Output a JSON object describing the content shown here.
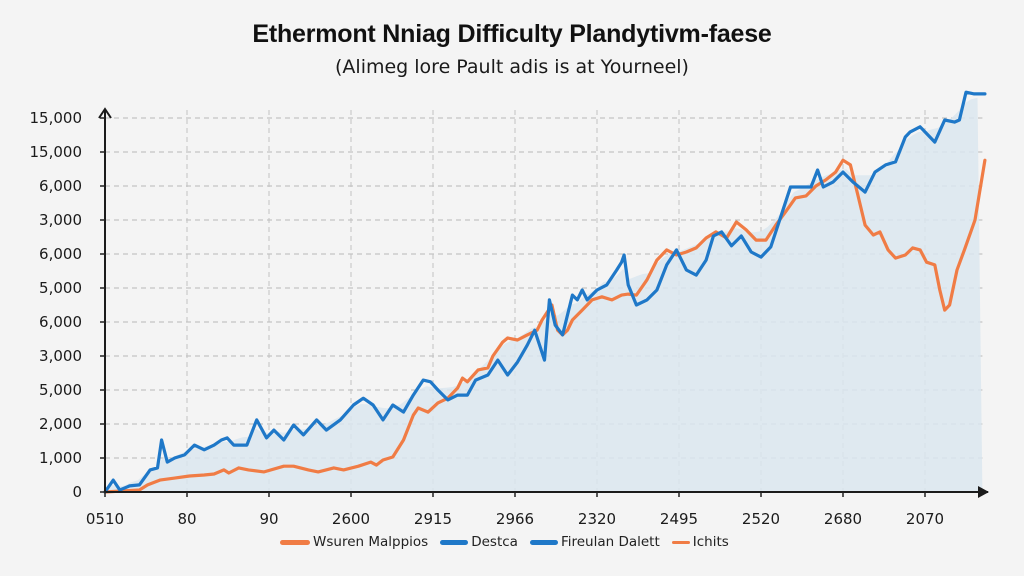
{
  "chart_data": {
    "type": "line",
    "title": "Ethermont Nniag Difficulty Plandytivm-faese",
    "subtitle": "(Alimeg lore Pault adis is at Yourneel)",
    "xlabel": "",
    "ylabel": "",
    "grid": true,
    "legend_position": "bottom-center",
    "x_tick_labels": [
      "0510",
      "80",
      "90",
      "2600",
      "2915",
      "2966",
      "2320",
      "2495",
      "2520",
      "2680",
      "2070"
    ],
    "y_tick_labels": [
      "0",
      "1,000",
      "2,000",
      "5,000",
      "3,000",
      "6,000",
      "5,000",
      "6,000",
      "3,000",
      "6,000",
      "15,000",
      "15,000"
    ],
    "y_note": "Tick labels are non-monotonic as printed; values below are in gridline-index units (0 = bottom tick '0', 11 = top tick '15,000'), x in tick-index units (0 = '0510', 10 = '2070').",
    "x_range": [
      0,
      10.7
    ],
    "y_range": [
      0,
      11.5
    ],
    "series": [
      {
        "name": "Wsuren Malppios",
        "color": "#f07c45",
        "points": [
          [
            0,
            0
          ],
          [
            0.42,
            0.06
          ],
          [
            0.52,
            0.21
          ],
          [
            0.67,
            0.35
          ],
          [
            0.85,
            0.41
          ],
          [
            1.03,
            0.47
          ],
          [
            1.21,
            0.5
          ],
          [
            1.33,
            0.53
          ],
          [
            1.45,
            0.65
          ],
          [
            1.51,
            0.56
          ],
          [
            1.63,
            0.71
          ],
          [
            1.75,
            0.65
          ],
          [
            1.94,
            0.59
          ],
          [
            2.18,
            0.76
          ],
          [
            2.3,
            0.76
          ],
          [
            2.48,
            0.65
          ],
          [
            2.6,
            0.59
          ],
          [
            2.79,
            0.71
          ],
          [
            2.91,
            0.65
          ],
          [
            3.09,
            0.76
          ],
          [
            3.24,
            0.88
          ],
          [
            3.31,
            0.79
          ],
          [
            3.39,
            0.94
          ],
          [
            3.51,
            1.03
          ],
          [
            3.64,
            1.53
          ],
          [
            3.76,
            2.26
          ],
          [
            3.82,
            2.47
          ],
          [
            3.94,
            2.35
          ],
          [
            4.06,
            2.62
          ],
          [
            4.18,
            2.76
          ],
          [
            4.3,
            3.06
          ],
          [
            4.36,
            3.35
          ],
          [
            4.42,
            3.24
          ],
          [
            4.55,
            3.59
          ],
          [
            4.67,
            3.65
          ],
          [
            4.73,
            4.0
          ],
          [
            4.85,
            4.41
          ],
          [
            4.91,
            4.53
          ],
          [
            5.03,
            4.47
          ],
          [
            5.15,
            4.62
          ],
          [
            5.27,
            4.76
          ],
          [
            5.33,
            5.06
          ],
          [
            5.45,
            5.5
          ],
          [
            5.52,
            4.76
          ],
          [
            5.58,
            4.62
          ],
          [
            5.64,
            4.76
          ],
          [
            5.7,
            5.06
          ],
          [
            5.82,
            5.35
          ],
          [
            5.94,
            5.65
          ],
          [
            6.06,
            5.74
          ],
          [
            6.18,
            5.65
          ],
          [
            6.3,
            5.79
          ],
          [
            6.38,
            5.82
          ],
          [
            6.48,
            5.79
          ],
          [
            6.61,
            6.24
          ],
          [
            6.73,
            6.82
          ],
          [
            6.85,
            7.12
          ],
          [
            6.97,
            6.97
          ],
          [
            7.09,
            7.06
          ],
          [
            7.21,
            7.18
          ],
          [
            7.33,
            7.47
          ],
          [
            7.45,
            7.65
          ],
          [
            7.58,
            7.47
          ],
          [
            7.7,
            7.94
          ],
          [
            7.82,
            7.71
          ],
          [
            7.94,
            7.41
          ],
          [
            8.06,
            7.41
          ],
          [
            8.18,
            7.85
          ],
          [
            8.3,
            8.24
          ],
          [
            8.42,
            8.65
          ],
          [
            8.55,
            8.71
          ],
          [
            8.67,
            9.0
          ],
          [
            8.79,
            9.18
          ],
          [
            8.91,
            9.41
          ],
          [
            9.0,
            9.76
          ],
          [
            9.09,
            9.62
          ],
          [
            9.18,
            8.74
          ],
          [
            9.27,
            7.85
          ],
          [
            9.37,
            7.56
          ],
          [
            9.45,
            7.65
          ],
          [
            9.55,
            7.12
          ],
          [
            9.64,
            6.88
          ],
          [
            9.76,
            6.97
          ],
          [
            9.85,
            7.18
          ],
          [
            9.94,
            7.12
          ],
          [
            10.02,
            6.76
          ],
          [
            10.12,
            6.68
          ],
          [
            10.18,
            5.94
          ],
          [
            10.24,
            5.35
          ],
          [
            10.3,
            5.5
          ],
          [
            10.39,
            6.53
          ],
          [
            10.48,
            7.12
          ],
          [
            10.61,
            8.0
          ],
          [
            10.73,
            9.76
          ]
        ]
      },
      {
        "name": "Destca",
        "color": "#1f78c8",
        "points": [
          [
            0,
            0
          ],
          [
            0.1,
            0.35
          ],
          [
            0.18,
            0.06
          ],
          [
            0.3,
            0.18
          ],
          [
            0.42,
            0.21
          ],
          [
            0.55,
            0.65
          ],
          [
            0.64,
            0.71
          ],
          [
            0.69,
            1.53
          ],
          [
            0.76,
            0.88
          ],
          [
            0.85,
            1.0
          ],
          [
            0.97,
            1.09
          ],
          [
            1.09,
            1.38
          ],
          [
            1.21,
            1.24
          ],
          [
            1.33,
            1.38
          ],
          [
            1.42,
            1.53
          ],
          [
            1.49,
            1.59
          ],
          [
            1.57,
            1.38
          ],
          [
            1.73,
            1.38
          ],
          [
            1.85,
            2.12
          ],
          [
            1.97,
            1.59
          ],
          [
            2.06,
            1.82
          ],
          [
            2.18,
            1.53
          ],
          [
            2.3,
            1.97
          ],
          [
            2.42,
            1.68
          ],
          [
            2.58,
            2.12
          ],
          [
            2.7,
            1.82
          ],
          [
            2.87,
            2.12
          ],
          [
            3.03,
            2.56
          ],
          [
            3.15,
            2.76
          ],
          [
            3.27,
            2.56
          ],
          [
            3.39,
            2.12
          ],
          [
            3.51,
            2.56
          ],
          [
            3.64,
            2.35
          ],
          [
            3.76,
            2.85
          ],
          [
            3.88,
            3.29
          ],
          [
            3.97,
            3.24
          ],
          [
            4.06,
            3.0
          ],
          [
            4.18,
            2.71
          ],
          [
            4.3,
            2.85
          ],
          [
            4.42,
            2.85
          ],
          [
            4.52,
            3.29
          ],
          [
            4.67,
            3.44
          ],
          [
            4.79,
            3.88
          ],
          [
            4.91,
            3.44
          ],
          [
            5.03,
            3.82
          ],
          [
            5.15,
            4.32
          ],
          [
            5.24,
            4.76
          ],
          [
            5.36,
            3.88
          ],
          [
            5.42,
            5.65
          ],
          [
            5.49,
            4.91
          ],
          [
            5.58,
            4.62
          ],
          [
            5.7,
            5.79
          ],
          [
            5.76,
            5.65
          ],
          [
            5.82,
            5.94
          ],
          [
            5.88,
            5.65
          ],
          [
            6.0,
            5.94
          ],
          [
            6.12,
            6.09
          ],
          [
            6.24,
            6.53
          ],
          [
            6.3,
            6.76
          ],
          [
            6.33,
            6.97
          ],
          [
            6.38,
            6.09
          ],
          [
            6.48,
            5.5
          ],
          [
            6.61,
            5.65
          ],
          [
            6.73,
            5.94
          ],
          [
            6.85,
            6.68
          ],
          [
            6.97,
            7.12
          ],
          [
            7.09,
            6.53
          ],
          [
            7.21,
            6.38
          ],
          [
            7.33,
            6.82
          ],
          [
            7.42,
            7.53
          ],
          [
            7.52,
            7.65
          ],
          [
            7.64,
            7.24
          ],
          [
            7.76,
            7.53
          ],
          [
            7.88,
            7.06
          ],
          [
            8.0,
            6.91
          ],
          [
            8.12,
            7.21
          ],
          [
            8.24,
            8.09
          ],
          [
            8.36,
            8.97
          ],
          [
            8.48,
            8.97
          ],
          [
            8.61,
            8.97
          ],
          [
            8.69,
            9.47
          ],
          [
            8.76,
            8.97
          ],
          [
            8.88,
            9.12
          ],
          [
            9.0,
            9.41
          ],
          [
            9.12,
            9.12
          ],
          [
            9.27,
            8.82
          ],
          [
            9.39,
            9.41
          ],
          [
            9.52,
            9.62
          ],
          [
            9.64,
            9.71
          ],
          [
            9.76,
            10.44
          ],
          [
            9.82,
            10.59
          ],
          [
            9.94,
            10.74
          ],
          [
            10.06,
            10.44
          ],
          [
            10.12,
            10.29
          ],
          [
            10.24,
            10.94
          ],
          [
            10.36,
            10.88
          ],
          [
            10.42,
            10.94
          ],
          [
            10.5,
            11.76
          ],
          [
            10.6,
            11.71
          ],
          [
            10.73,
            11.71
          ]
        ]
      },
      {
        "name": "Fireulan Dalett",
        "color": "#1f78c8",
        "points": []
      },
      {
        "name": "Ichits",
        "color": "#f07c45",
        "points": []
      }
    ],
    "area_fill": {
      "color": "#dbe6ef",
      "description": "light blue shaded area under upper envelope of series"
    }
  },
  "legend": {
    "items": [
      {
        "label": "Wsuren Malppios",
        "color": "#f07c45",
        "swatch": "wide"
      },
      {
        "label": "Destca",
        "color": "#1f78c8",
        "swatch": "wide"
      },
      {
        "label": "Fireulan Dalett",
        "color": "#1f78c8",
        "swatch": "wide"
      },
      {
        "label": "Ichits",
        "color": "#f07c45",
        "swatch": "thin"
      }
    ]
  }
}
